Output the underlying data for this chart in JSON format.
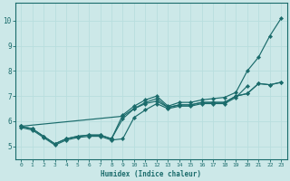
{
  "xlabel": "Humidex (Indice chaleur)",
  "bg_color": "#cce8e8",
  "grid_color": "#d4eeee",
  "line_color": "#1a6b6b",
  "xlim": [
    -0.5,
    23.5
  ],
  "ylim": [
    4.5,
    10.7
  ],
  "yticks": [
    5,
    6,
    7,
    8,
    9,
    10
  ],
  "xticks": [
    0,
    1,
    2,
    3,
    4,
    5,
    6,
    7,
    8,
    9,
    10,
    11,
    12,
    13,
    14,
    15,
    16,
    17,
    18,
    19,
    20,
    21,
    22,
    23
  ],
  "lines": [
    {
      "x": [
        0,
        1,
        2,
        3,
        4,
        5,
        6,
        7,
        8,
        9,
        10,
        11,
        12,
        13,
        14,
        15,
        16,
        17,
        18,
        19,
        20,
        21,
        22,
        23
      ],
      "y": [
        5.8,
        5.7,
        5.4,
        5.1,
        5.3,
        5.4,
        5.45,
        5.45,
        5.3,
        6.25,
        6.6,
        6.85,
        7.0,
        6.6,
        6.75,
        6.75,
        6.85,
        6.9,
        6.95,
        7.15,
        8.0,
        8.55,
        9.4,
        10.1
      ]
    },
    {
      "x": [
        0,
        1,
        2,
        3,
        4,
        5,
        6,
        7,
        8,
        9,
        10,
        11,
        12,
        13,
        14,
        15,
        16,
        17,
        18,
        19,
        20,
        21,
        22,
        23
      ],
      "y": [
        5.8,
        5.7,
        5.4,
        5.1,
        5.3,
        5.4,
        5.45,
        5.45,
        5.3,
        6.1,
        6.5,
        6.7,
        6.8,
        6.55,
        6.65,
        6.65,
        6.75,
        6.75,
        6.75,
        7.0,
        7.1,
        7.5,
        7.45,
        7.55
      ]
    },
    {
      "x": [
        0,
        9,
        10,
        11,
        12,
        13,
        14,
        15,
        16,
        17,
        18,
        19,
        20,
        21,
        22,
        23
      ],
      "y": [
        5.8,
        6.2,
        6.5,
        6.75,
        6.9,
        6.55,
        6.65,
        6.65,
        6.75,
        6.75,
        6.75,
        7.0,
        7.1,
        7.5,
        7.45,
        7.55
      ]
    },
    {
      "x": [
        0,
        1,
        2,
        3,
        4,
        5,
        6,
        7,
        8,
        9,
        10,
        11,
        12,
        13,
        14,
        15,
        16,
        17,
        18,
        19,
        20
      ],
      "y": [
        5.75,
        5.65,
        5.35,
        5.05,
        5.25,
        5.35,
        5.4,
        5.4,
        5.25,
        5.3,
        6.15,
        6.45,
        6.7,
        6.5,
        6.6,
        6.6,
        6.7,
        6.7,
        6.7,
        6.95,
        7.4
      ]
    }
  ]
}
